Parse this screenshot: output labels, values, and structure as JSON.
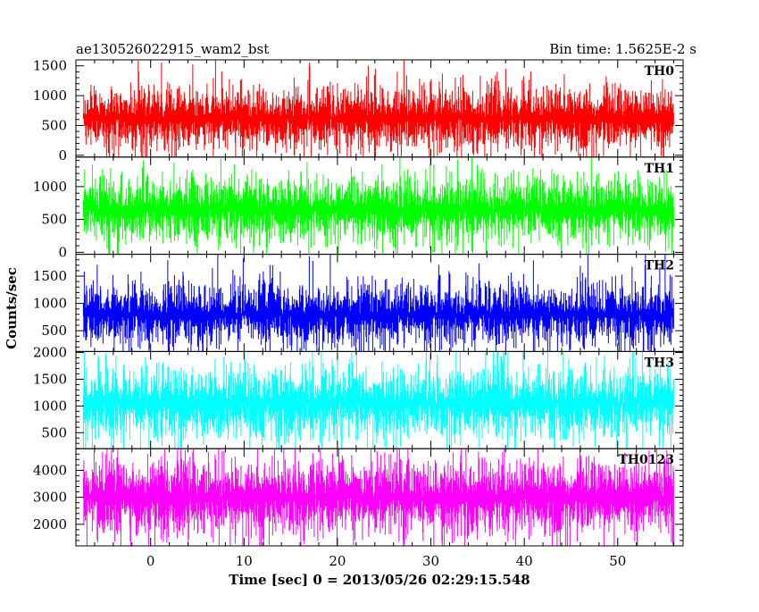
{
  "chart_data": {
    "type": "line",
    "title_left": "ae130526022915_wam2_bst",
    "title_right": "Bin time: 1.5625E-2 s",
    "xlabel": "Time [sec] 0 = 2013/05/26 02:29:15.548",
    "ylabel": "Counts/sec",
    "xlim": [
      -8,
      57
    ],
    "x_ticks": [
      0,
      10,
      20,
      30,
      40,
      50
    ],
    "x_tick_labels": [
      "0",
      "10",
      "20",
      "30",
      "40",
      "50"
    ],
    "data_x_range": [
      -7.2,
      56.0
    ],
    "bin_time": 0.015625,
    "grid": false,
    "panels": [
      {
        "name": "TH0",
        "color": "#ff0000",
        "ylim": [
          -30,
          1600
        ],
        "y_ticks": [
          0,
          500,
          1000,
          1500
        ],
        "y_tick_labels": [
          "0",
          "500",
          "1000",
          "1500"
        ],
        "mean": 620,
        "sigma": 240
      },
      {
        "name": "TH1",
        "color": "#00ff00",
        "ylim": [
          -30,
          1450
        ],
        "y_ticks": [
          0,
          500,
          1000
        ],
        "y_tick_labels": [
          "0",
          "500",
          "1000"
        ],
        "mean": 650,
        "sigma": 220
      },
      {
        "name": "TH2",
        "color": "#0000ff",
        "ylim": [
          120,
          1900
        ],
        "y_ticks": [
          500,
          1000,
          1500
        ],
        "y_tick_labels": [
          "500",
          "1000",
          "1500"
        ],
        "mean": 800,
        "sigma": 260
      },
      {
        "name": "TH3",
        "color": "#00ffff",
        "ylim": [
          200,
          2020
        ],
        "y_ticks": [
          500,
          1000,
          1500,
          2000
        ],
        "y_tick_labels": [
          "500",
          "1000",
          "1500",
          "2000"
        ],
        "mean": 1050,
        "sigma": 300
      },
      {
        "name": "TH0123",
        "color": "#ff00ff",
        "ylim": [
          1200,
          4800
        ],
        "y_ticks": [
          2000,
          3000,
          4000
        ],
        "y_tick_labels": [
          "2000",
          "3000",
          "4000"
        ],
        "mean": 3000,
        "sigma": 620
      }
    ]
  }
}
